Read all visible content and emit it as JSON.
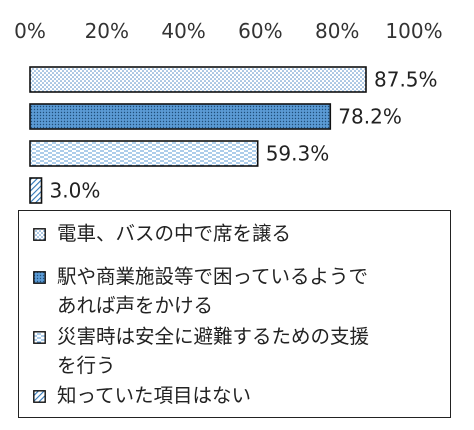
{
  "chart_data": {
    "type": "bar",
    "orientation": "horizontal",
    "xlim": [
      0,
      100
    ],
    "tick_step": 20,
    "tick_suffix": "%",
    "ticks": [
      "0%",
      "20%",
      "40%",
      "60%",
      "80%",
      "100%"
    ],
    "categories": [
      "電車、バスの中で席を譲る",
      "駅や商業施設等で困っているようであれば声をかける",
      "災害時は安全に避難するための支援を行う",
      "知っていた項目はない"
    ],
    "legend_lines": [
      [
        "電車、バスの中で席を譲る"
      ],
      [
        "駅や商業施設等で困っているようで",
        "あれば声をかける"
      ],
      [
        "災害時は安全に避難するための支援",
        "を行う"
      ],
      [
        "知っていた項目はない"
      ]
    ],
    "values": [
      87.5,
      78.2,
      59.3,
      3.0
    ],
    "value_labels": [
      "87.5%",
      "78.2%",
      "59.3%",
      "3.0%"
    ],
    "patterns": [
      "dots",
      "dense-dots",
      "dashes",
      "diagonal"
    ],
    "colors": {
      "fill": "#5b9bd5",
      "edge": "#111111",
      "text": "#333333"
    },
    "grid": false,
    "legend_position": "bottom"
  }
}
